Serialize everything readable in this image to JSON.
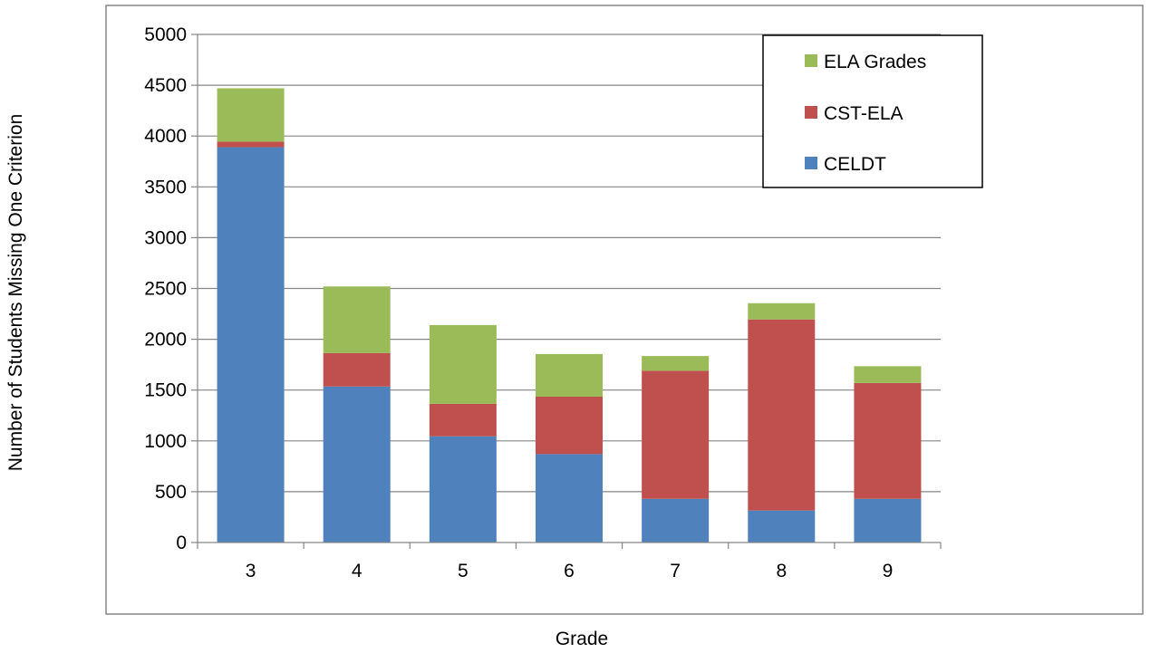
{
  "chart_data": {
    "type": "bar",
    "stacked": true,
    "categories": [
      "3",
      "4",
      "5",
      "6",
      "7",
      "8",
      "9"
    ],
    "series": [
      {
        "name": "CELDT",
        "color": "#4f81bd",
        "values": [
          3890,
          1535,
          1045,
          870,
          430,
          315,
          430
        ]
      },
      {
        "name": "CST-ELA",
        "color": "#c0504d",
        "values": [
          55,
          330,
          320,
          565,
          1260,
          1880,
          1140
        ]
      },
      {
        "name": "ELA Grades",
        "color": "#9bbb59",
        "values": [
          525,
          655,
          775,
          420,
          145,
          160,
          165
        ]
      }
    ],
    "title": "",
    "xlabel": "Grade",
    "ylabel": "Number of Students Missing One Criterion",
    "ylim": [
      0,
      5000
    ],
    "yticks": [
      "0",
      "500",
      "1000",
      "1500",
      "2000",
      "2500",
      "3000",
      "3500",
      "4000",
      "4500",
      "5000"
    ],
    "grid": true,
    "legend_position": "top-right",
    "legend_order": [
      "ELA Grades",
      "CST-ELA",
      "CELDT"
    ]
  }
}
